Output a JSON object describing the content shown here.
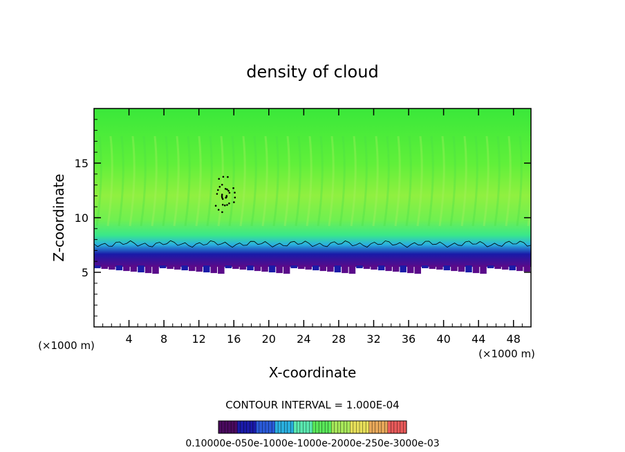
{
  "chart_data": {
    "type": "heatmap",
    "title": "density of cloud",
    "xlabel": "X-coordinate",
    "ylabel": "Z-coordinate",
    "x_unit": "(×1000 m)",
    "xlim": [
      0,
      50
    ],
    "ylim": [
      0,
      20
    ],
    "x_ticks": [
      4,
      8,
      12,
      16,
      20,
      24,
      28,
      32,
      36,
      40,
      44,
      48
    ],
    "y_ticks": [
      5,
      10,
      15
    ],
    "x_tick_labels": [
      "4",
      "8",
      "12",
      "16",
      "20",
      "24",
      "28",
      "32",
      "36",
      "40",
      "44",
      "48"
    ],
    "y_tick_labels": [
      "5",
      "10",
      "15"
    ],
    "field": {
      "z_bottom_km": 5.5,
      "z_top_km": 20,
      "main_value": "green",
      "layer_top_km": 7.6
    },
    "contour_interval_label": "CONTOUR INTERVAL = 1.000E-04",
    "colorbar": {
      "colors": [
        "#4a0a5e",
        "#1a1aa8",
        "#2a5ad8",
        "#2ab0e0",
        "#5ae8b0",
        "#5ae85a",
        "#a8e85a",
        "#e8e05a",
        "#e8a85a",
        "#e85a5a"
      ],
      "tick_text": "0.10000e-050e-1000e-1000e-2000e-250e-3000e-03"
    }
  }
}
